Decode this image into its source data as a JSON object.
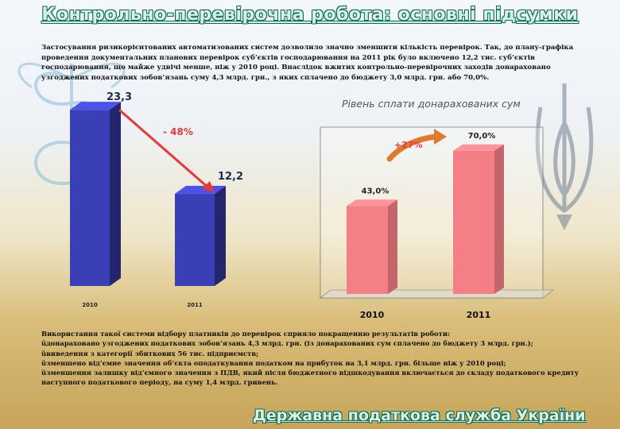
{
  "title": "Контрольно-перевірочна робота: основні підсумки",
  "footer": "Державна податкова служба України",
  "intro": "Застосування ризикорієнтованих автоматизованих систем дозволило значно зменшити кількість перевірок. Так, до плану-графіка проведення документальних планових перевірок суб’єктів господарювання на 2011 рік було включено 12,2 тис. суб’єктів господарювання, що майже удвічі менше, ніж у 2010 році. Внаслідок вжитих контрольно-перевірочних заходів донараховано узгоджених податкових зобов’язань суму 4,3 млрд. грн., з яких сплачено до бюджету 3,0 млрд. грн. або 70,0%.",
  "bottom": {
    "lead": "Використання такої системи відбору платників до перевірок сприяло покращенню результатів роботи:",
    "bullets": [
      "донараховано узгоджених податкових зобов’язань 4,3 млрд. грн. (із донарахованих сум сплачено до бюджету 3 млрд. грн.);",
      "виведення з категорії збиткових 56 тис. підприємств;",
      "зменшено від’ємне значення об’єкта оподаткування податком на прибуток на 3,1 млрд. грн. більше ніж у 2010 році;",
      "зменшення залишку від’ємного значення з ПДВ, який після бюджетного відшкодування включається до складу податкового кредиту наступного  податкового періоду, на суму 1,4 млрд. гривень."
    ],
    "bullet_mark": "ü"
  },
  "chart_data": [
    {
      "type": "bar",
      "categories": [
        "2010",
        "2011"
      ],
      "values": [
        23.3,
        12.2
      ],
      "value_labels": [
        "23,3",
        "12,2"
      ],
      "annotation": "- 48%",
      "color": "#3b3fb5",
      "ylim": [
        0,
        25
      ]
    },
    {
      "type": "bar",
      "title": "Рівень сплати донарахованих сум",
      "categories": [
        "2010",
        "2011"
      ],
      "values": [
        43.0,
        70.0
      ],
      "value_labels": [
        "43,0%",
        "70,0%"
      ],
      "annotation": "+27%",
      "color": "#f47f86",
      "ylim": [
        0,
        80
      ]
    }
  ]
}
